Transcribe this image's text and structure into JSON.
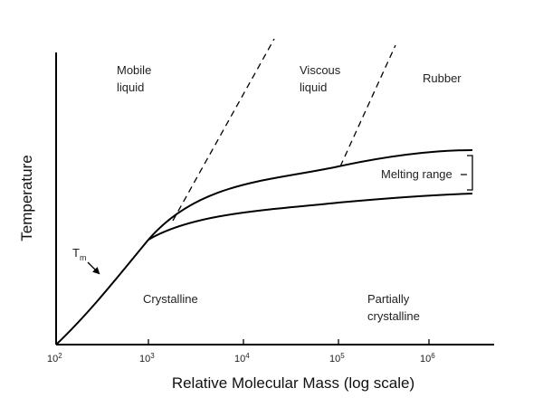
{
  "axes": {
    "x_title": "Relative Molecular Mass (log scale)",
    "y_title": "Temperature",
    "x_ticks": [
      {
        "base": "10",
        "exp": "2"
      },
      {
        "base": "10",
        "exp": "3"
      },
      {
        "base": "10",
        "exp": "4"
      },
      {
        "base": "10",
        "exp": "5"
      },
      {
        "base": "10",
        "exp": "6"
      }
    ]
  },
  "regions": {
    "mobile_liquid": [
      "Mobile",
      "liquid"
    ],
    "viscous_liquid": [
      "Viscous",
      "liquid"
    ],
    "rubber": "Rubber",
    "crystalline": "Crystalline",
    "partially_crystalline": [
      "Partially",
      "crystalline"
    ],
    "melting_range": "Melting range"
  },
  "tm_label": {
    "base": "T",
    "sub": "m"
  }
}
